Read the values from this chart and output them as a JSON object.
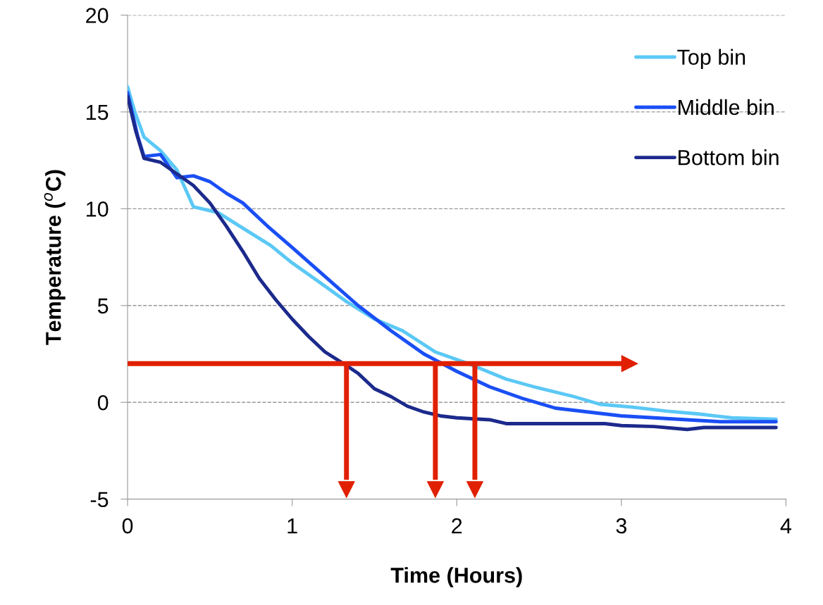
{
  "chart_data": {
    "type": "line",
    "xlabel": "Time (Hours)",
    "ylabel": "Temperature ($^{o}$C)",
    "xlim": [
      0,
      4
    ],
    "xticks": [
      0,
      1,
      2,
      3,
      4
    ],
    "ylim": [
      -5,
      20
    ],
    "yticks": [
      -5,
      0,
      5,
      10,
      15,
      20
    ],
    "grid": "y",
    "legend": "top right",
    "line_style": "solid",
    "marker": "none",
    "series": [
      {
        "name": "Top bin",
        "color": "#5bc8f5",
        "x": [
          0,
          0.044,
          0.1,
          0.2,
          0.3,
          0.4,
          0.55,
          0.7,
          0.87,
          1,
          1.15,
          1.33,
          1.5,
          1.67,
          1.87,
          2.07,
          2.3,
          2.47,
          2.71,
          2.87,
          3.07,
          3.27,
          3.47,
          3.67,
          3.94
        ],
        "values": [
          16.3,
          15,
          13.7,
          13,
          12,
          10.1,
          9.8,
          9,
          8.1,
          7.2,
          6.3,
          5.2,
          4.3,
          3.7,
          2.6,
          2.0,
          1.2,
          0.8,
          0.3,
          -0.1,
          -0.25,
          -0.45,
          -0.6,
          -0.8,
          -0.87
        ]
      },
      {
        "name": "Middle bin",
        "color": "#1a4ff5",
        "x": [
          0,
          0.06,
          0.1,
          0.2,
          0.3,
          0.4,
          0.5,
          0.6,
          0.7,
          0.85,
          1,
          1.2,
          1.4,
          1.6,
          1.8,
          2.0,
          2.2,
          2.4,
          2.6,
          2.8,
          3.0,
          3.2,
          3.4,
          3.6,
          3.94
        ],
        "values": [
          16,
          13.8,
          12.7,
          12.8,
          11.6,
          11.7,
          11.4,
          10.8,
          10.3,
          9.1,
          8.0,
          6.5,
          5.0,
          3.7,
          2.5,
          1.6,
          0.8,
          0.2,
          -0.3,
          -0.5,
          -0.7,
          -0.8,
          -0.9,
          -1.0,
          -1.0
        ]
      },
      {
        "name": "Bottom bin",
        "color": "#1c2a8c",
        "x": [
          0,
          0.05,
          0.1,
          0.2,
          0.3,
          0.4,
          0.5,
          0.6,
          0.7,
          0.8,
          0.9,
          1.0,
          1.1,
          1.2,
          1.33,
          1.4,
          1.5,
          1.6,
          1.7,
          1.8,
          1.9,
          2.0,
          2.2,
          2.3,
          2.6,
          2.9,
          3.0,
          3.2,
          3.4,
          3.5,
          3.94
        ],
        "values": [
          15.8,
          14,
          12.6,
          12.4,
          11.8,
          11.2,
          10.3,
          9.1,
          7.8,
          6.4,
          5.3,
          4.3,
          3.4,
          2.6,
          1.9,
          1.5,
          0.7,
          0.3,
          -0.2,
          -0.5,
          -0.7,
          -0.8,
          -0.9,
          -1.1,
          -1.1,
          -1.1,
          -1.2,
          -1.25,
          -1.4,
          -1.3,
          -1.3
        ]
      }
    ],
    "ref_lines": [
      {
        "axis": "y",
        "value": 2,
        "color": "#e02000"
      },
      {
        "axis": "x",
        "value": 1.33,
        "color": "#e02000"
      },
      {
        "axis": "x",
        "value": 1.87,
        "color": "#e02000"
      },
      {
        "axis": "x",
        "value": 2.11,
        "color": "#e02000"
      }
    ]
  }
}
